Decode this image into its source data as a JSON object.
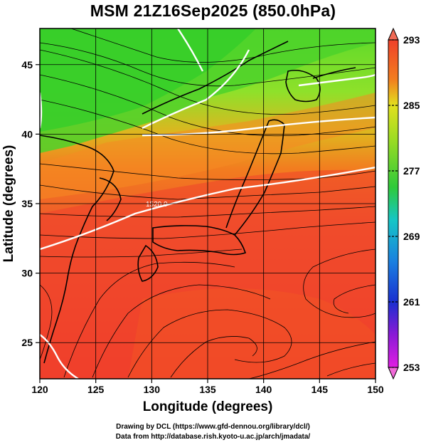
{
  "title": "MSM 21Z16Sep2025 (850.0hPa)",
  "map": {
    "xlabel": "Longitude (degrees)",
    "ylabel": "Latitude  (degrees)",
    "lon_range": [
      120,
      150
    ],
    "lat_range": [
      22.4,
      47.6
    ],
    "x_ticks": [
      {
        "value": 120,
        "label": "120"
      },
      {
        "value": 125,
        "label": "125"
      },
      {
        "value": 130,
        "label": "130"
      },
      {
        "value": 135,
        "label": "135"
      },
      {
        "value": 140,
        "label": "140"
      },
      {
        "value": 145,
        "label": "145"
      },
      {
        "value": 150,
        "label": "150"
      }
    ],
    "y_ticks": [
      {
        "value": 25,
        "label": "25"
      },
      {
        "value": 30,
        "label": "30"
      },
      {
        "value": 35,
        "label": "35"
      },
      {
        "value": 40,
        "label": "40"
      },
      {
        "value": 45,
        "label": "45"
      }
    ],
    "grid_lons": [
      125,
      130,
      135,
      140,
      145
    ],
    "grid_lats": [
      25,
      30,
      35,
      40,
      45
    ],
    "contour_label": "1520.0"
  },
  "colorbar": {
    "min": 253,
    "max": 293,
    "ticks": [
      {
        "value": 293,
        "label": "293"
      },
      {
        "value": 285,
        "label": "285"
      },
      {
        "value": 277,
        "label": "277"
      },
      {
        "value": 269,
        "label": "269"
      },
      {
        "value": 261,
        "label": "261"
      },
      {
        "value": 253,
        "label": "253"
      }
    ]
  },
  "colors": {
    "warm": "#f0402a",
    "orange": "#f27d1f",
    "yellow": "#d6e21e",
    "green": "#46cc23",
    "cyan": "#16c6d6",
    "blue": "#1641d6",
    "magenta": "#e01ee2",
    "contour": "#ffffff",
    "streamline": "#000000"
  },
  "credits": {
    "line1": "Drawing by DCL (https://www.gfd-dennou.org/library/dcl/)",
    "line2": "Data from http://database.rish.kyoto-u.ac.jp/arch/jmadata/"
  }
}
